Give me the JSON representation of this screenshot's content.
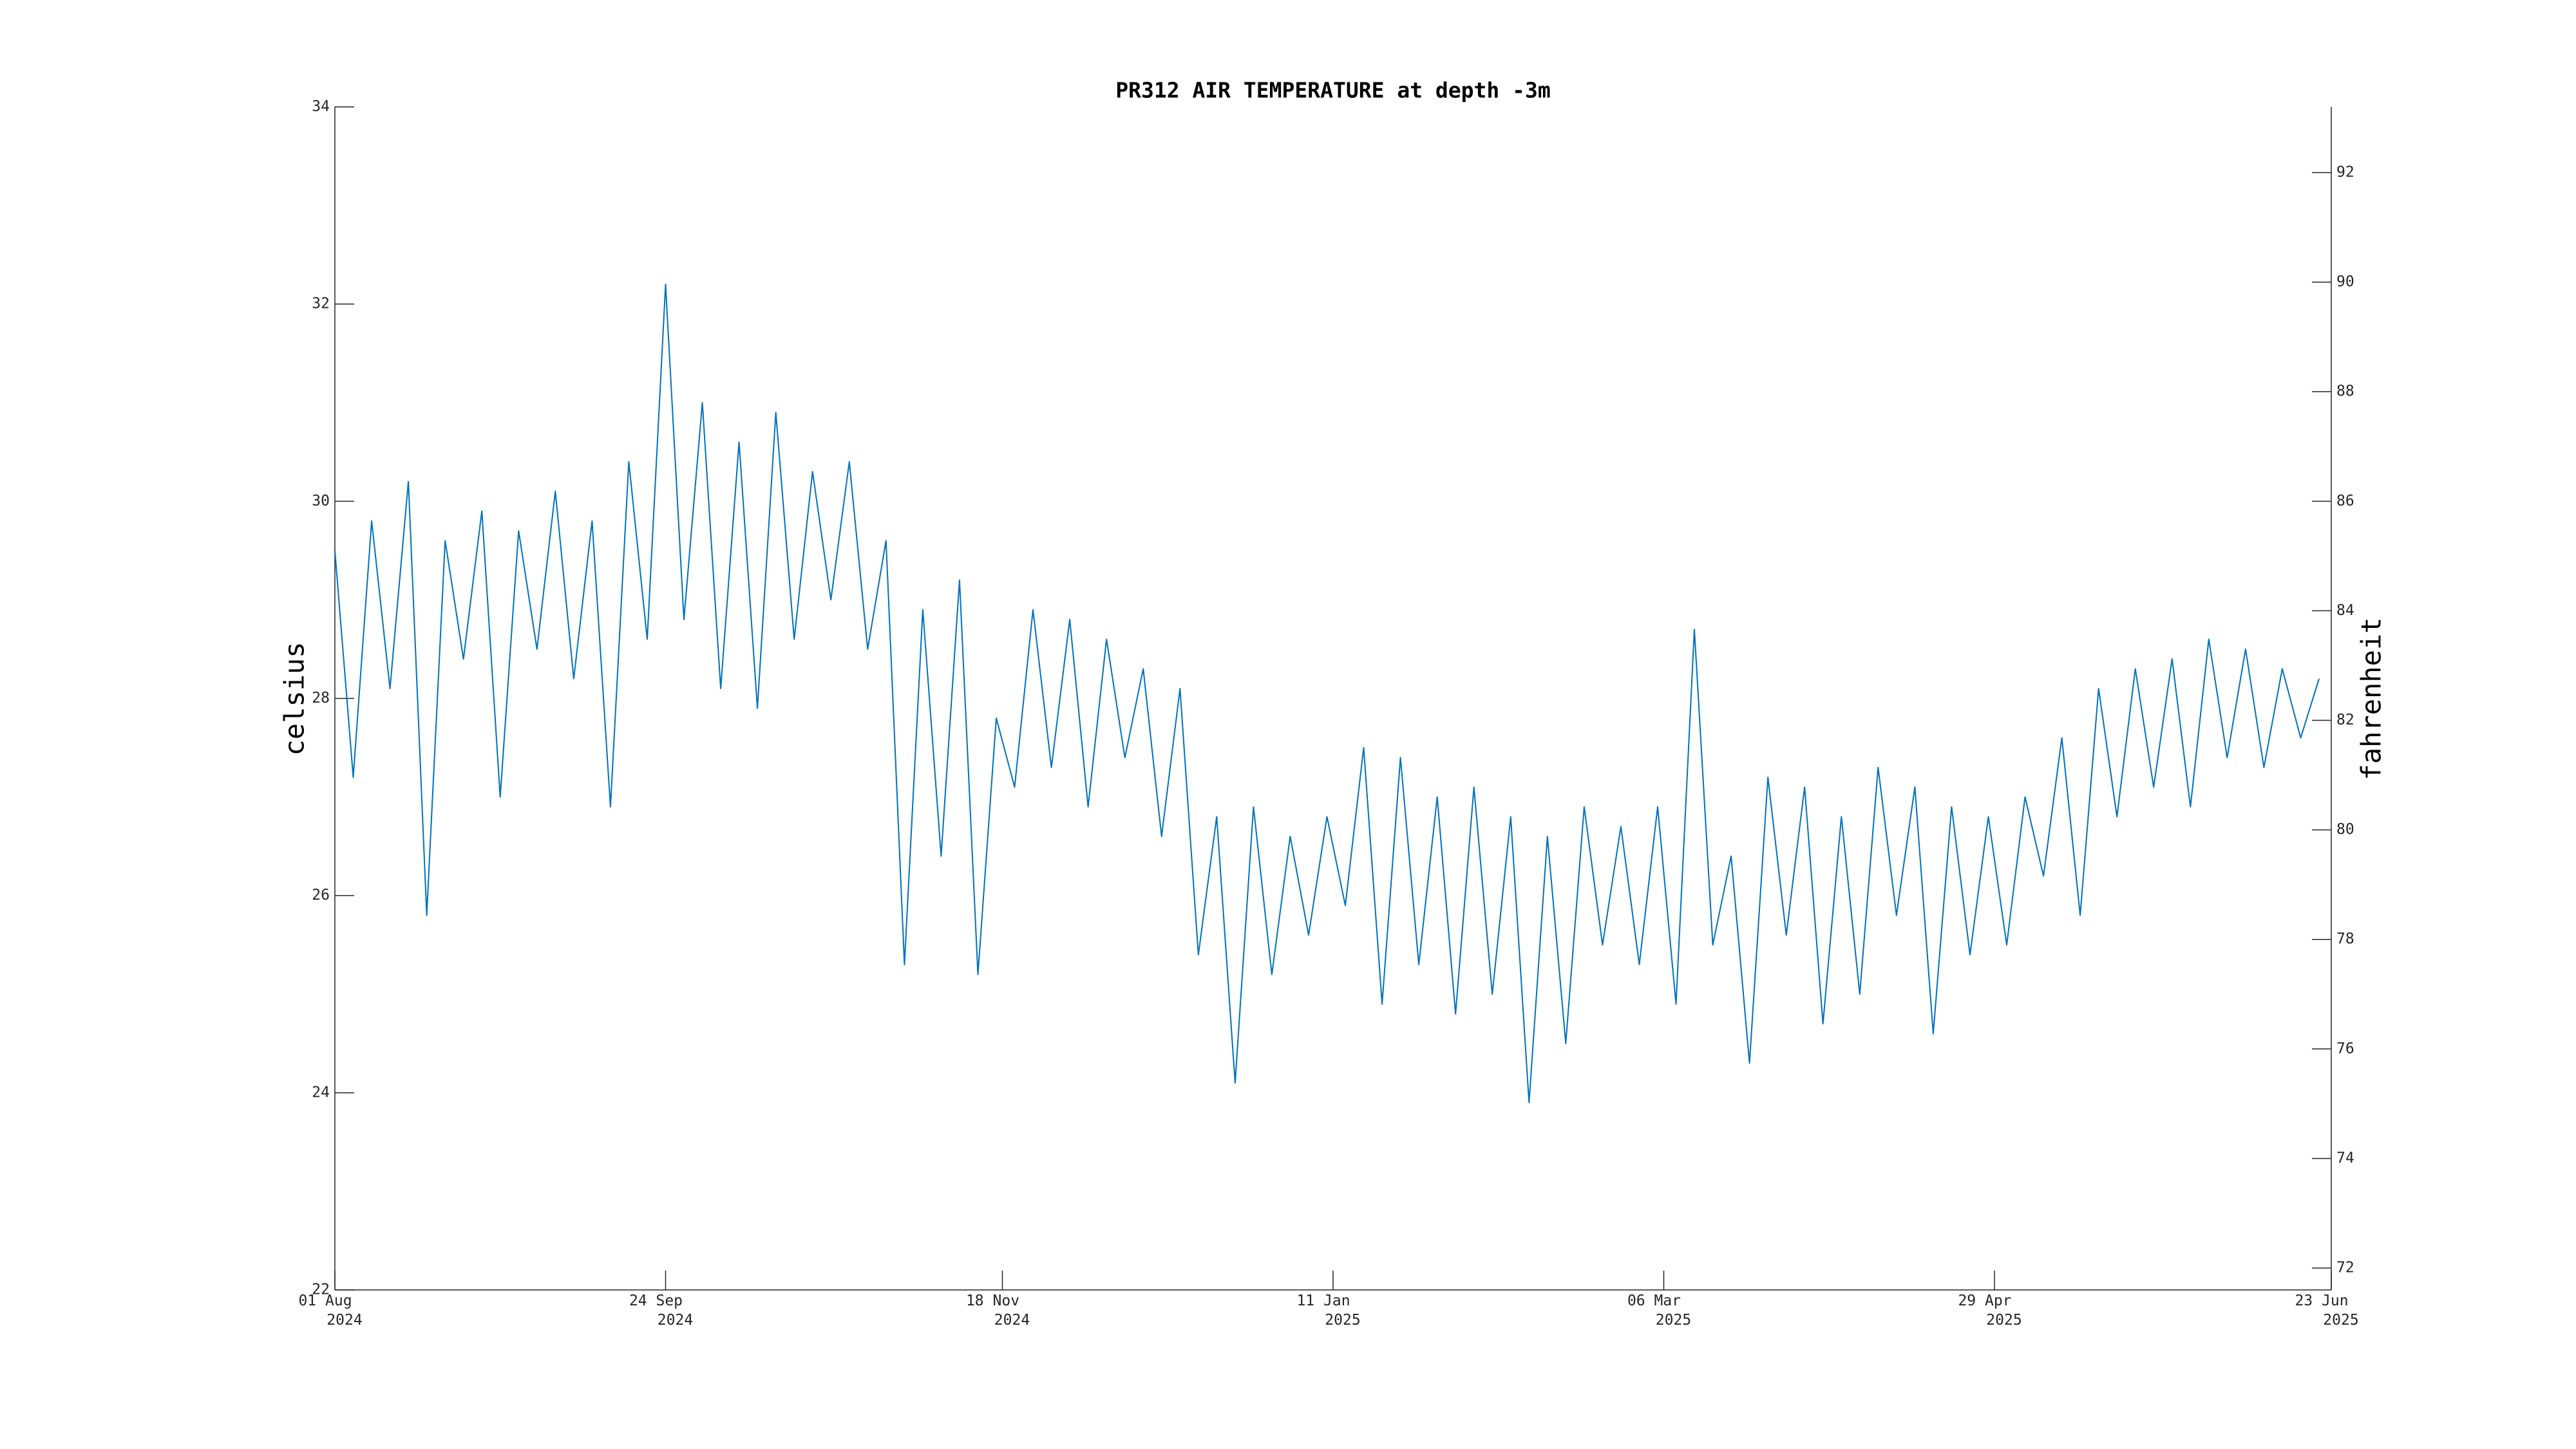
{
  "chart_data": {
    "type": "line",
    "title": "PR312 AIR TEMPERATURE at depth -3m",
    "ylabel": "celsius",
    "y2label": "fahrenheit",
    "x": [
      "2024-08-01",
      "2024-08-04",
      "2024-08-07",
      "2024-08-10",
      "2024-08-13",
      "2024-08-16",
      "2024-08-19",
      "2024-08-22",
      "2024-08-25",
      "2024-08-28",
      "2024-08-31",
      "2024-09-03",
      "2024-09-06",
      "2024-09-09",
      "2024-09-12",
      "2024-09-15",
      "2024-09-18",
      "2024-09-21",
      "2024-09-24",
      "2024-09-27",
      "2024-09-30",
      "2024-10-03",
      "2024-10-06",
      "2024-10-09",
      "2024-10-12",
      "2024-10-15",
      "2024-10-18",
      "2024-10-21",
      "2024-10-24",
      "2024-10-27",
      "2024-10-30",
      "2024-11-02",
      "2024-11-05",
      "2024-11-08",
      "2024-11-11",
      "2024-11-14",
      "2024-11-17",
      "2024-11-20",
      "2024-11-23",
      "2024-11-26",
      "2024-11-29",
      "2024-12-02",
      "2024-12-05",
      "2024-12-08",
      "2024-12-11",
      "2024-12-14",
      "2024-12-17",
      "2024-12-20",
      "2024-12-23",
      "2024-12-26",
      "2024-12-29",
      "2025-01-01",
      "2025-01-04",
      "2025-01-07",
      "2025-01-10",
      "2025-01-13",
      "2025-01-16",
      "2025-01-19",
      "2025-01-22",
      "2025-01-25",
      "2025-01-28",
      "2025-01-31",
      "2025-02-03",
      "2025-02-06",
      "2025-02-09",
      "2025-02-12",
      "2025-02-15",
      "2025-02-18",
      "2025-02-21",
      "2025-02-24",
      "2025-02-27",
      "2025-03-02",
      "2025-03-05",
      "2025-03-08",
      "2025-03-11",
      "2025-03-14",
      "2025-03-17",
      "2025-03-20",
      "2025-03-23",
      "2025-03-26",
      "2025-03-29",
      "2025-04-01",
      "2025-04-04",
      "2025-04-07",
      "2025-04-10",
      "2025-04-13",
      "2025-04-16",
      "2025-04-19",
      "2025-04-22",
      "2025-04-25",
      "2025-04-28",
      "2025-05-01",
      "2025-05-04",
      "2025-05-07",
      "2025-05-10",
      "2025-05-13",
      "2025-05-16",
      "2025-05-19",
      "2025-05-22",
      "2025-05-25",
      "2025-05-28",
      "2025-05-31",
      "2025-06-03",
      "2025-06-06",
      "2025-06-09",
      "2025-06-12",
      "2025-06-15",
      "2025-06-18",
      "2025-06-21"
    ],
    "series": [
      {
        "color": "#0072bd",
        "values": [
          29.5,
          27.2,
          29.8,
          28.1,
          30.2,
          25.8,
          29.6,
          28.4,
          29.9,
          27.0,
          29.7,
          28.5,
          30.1,
          28.2,
          29.8,
          26.9,
          30.4,
          28.6,
          32.2,
          28.8,
          31.0,
          28.1,
          30.6,
          27.9,
          30.9,
          28.6,
          30.3,
          29.0,
          30.4,
          28.5,
          29.6,
          25.3,
          28.9,
          26.4,
          29.2,
          25.2,
          27.8,
          27.1,
          28.9,
          27.3,
          28.8,
          26.9,
          28.6,
          27.4,
          28.3,
          26.6,
          28.1,
          25.4,
          26.8,
          24.1,
          26.9,
          25.2,
          26.6,
          25.6,
          26.8,
          25.9,
          27.5,
          24.9,
          27.4,
          25.3,
          27.0,
          24.8,
          27.1,
          25.0,
          26.8,
          23.9,
          26.6,
          24.5,
          26.9,
          25.5,
          26.7,
          25.3,
          26.9,
          24.9,
          28.7,
          25.5,
          26.4,
          24.3,
          27.2,
          25.6,
          27.1,
          24.7,
          26.8,
          25.0,
          27.3,
          25.8,
          27.1,
          24.6,
          26.9,
          25.4,
          26.8,
          25.5,
          27.0,
          26.2,
          27.6,
          25.8,
          28.1,
          26.8,
          28.3,
          27.1,
          28.4,
          26.9,
          28.6,
          27.4,
          28.5,
          27.3,
          28.3,
          27.6,
          28.2
        ]
      }
    ],
    "xlim": [
      "2024-08-01",
      "2025-06-23"
    ],
    "xticks": [
      {
        "value": "2024-08-01",
        "label": "01 Aug 2024"
      },
      {
        "value": "2024-09-24",
        "label": "24 Sep 2024"
      },
      {
        "value": "2024-11-18",
        "label": "18 Nov 2024"
      },
      {
        "value": "2025-01-11",
        "label": "11 Jan 2025"
      },
      {
        "value": "2025-03-06",
        "label": "06 Mar 2025"
      },
      {
        "value": "2025-04-29",
        "label": "29 Apr 2025"
      },
      {
        "value": "2025-06-23",
        "label": "23 Jun 2025"
      }
    ],
    "ylim": [
      22,
      34
    ],
    "yticks": [
      22,
      24,
      26,
      28,
      30,
      32,
      34
    ],
    "y2lim": [
      71.6,
      93.2
    ],
    "y2ticks": [
      72,
      74,
      76,
      78,
      80,
      82,
      84,
      86,
      88,
      90,
      92
    ]
  }
}
